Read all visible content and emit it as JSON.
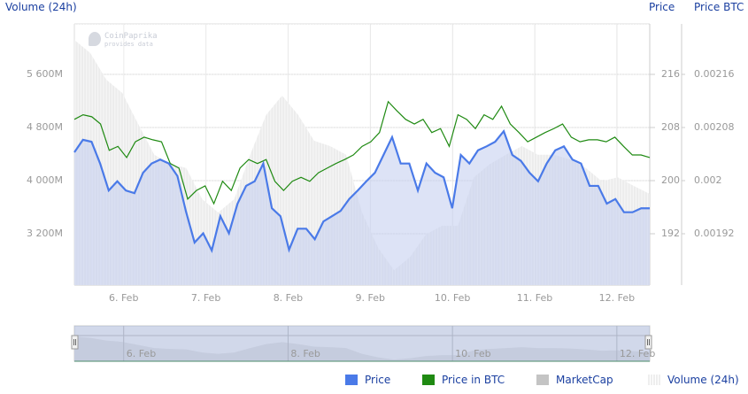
{
  "watermark": {
    "brand": "CoinPaprika",
    "sub": "provides data"
  },
  "chart_data": {
    "type": "line",
    "axes": {
      "left_title": "Volume (24h)",
      "right_title": "Price",
      "right2_title": "Price BTC",
      "left_ticks": [
        "5 600M",
        "4 800M",
        "4 000M",
        "3 200M"
      ],
      "left_tick_values": [
        5600,
        4800,
        4000,
        3200
      ],
      "price_ticks": [
        "216",
        "208",
        "200",
        "192"
      ],
      "price_tick_values": [
        216,
        208,
        200,
        192
      ],
      "btc_ticks": [
        "0.00216",
        "0.00208",
        "0.002",
        "0.00192"
      ]
    },
    "x_labels": [
      "6. Feb",
      "7. Feb",
      "8. Feb",
      "9. Feb",
      "10. Feb",
      "11. Feb",
      "12. Feb"
    ],
    "x_range_days": [
      5.4,
      12.4
    ],
    "series": [
      {
        "name": "Price",
        "color": "#4a7ae8",
        "values": [
          204.3,
          206.2,
          205.9,
          202.6,
          198.5,
          199.9,
          198.5,
          198.1,
          201.2,
          202.6,
          203.2,
          202.6,
          200.7,
          195.3,
          190.6,
          192.0,
          189.4,
          194.6,
          192.0,
          196.5,
          199.2,
          199.9,
          202.6,
          195.8,
          194.6,
          189.5,
          192.7,
          192.7,
          191.1,
          193.8,
          194.6,
          195.4,
          197.2,
          198.5,
          199.9,
          201.2,
          203.9,
          206.6,
          202.6,
          202.6,
          198.5,
          202.6,
          201.2,
          200.5,
          195.8,
          203.9,
          202.6,
          204.6,
          205.2,
          205.9,
          207.5,
          203.9,
          203.0,
          201.2,
          199.9,
          202.6,
          204.6,
          205.2,
          203.2,
          202.6,
          199.2,
          199.2,
          196.5,
          197.2,
          195.2,
          195.2,
          195.8,
          195.8
        ]
      },
      {
        "name": "Price in BTC",
        "color": "#1f8a12",
        "values": [
          0.002093,
          0.0021,
          0.002097,
          0.002086,
          0.002046,
          0.002052,
          0.002035,
          0.002059,
          0.002066,
          0.002062,
          0.002059,
          0.002026,
          0.002019,
          0.001972,
          0.001985,
          0.001992,
          0.001965,
          0.001999,
          0.001985,
          0.002019,
          0.002032,
          0.002026,
          0.002032,
          0.001999,
          0.001985,
          0.001999,
          0.002005,
          0.001999,
          0.002012,
          0.002019,
          0.002026,
          0.002032,
          0.002039,
          0.002052,
          0.002059,
          0.002073,
          0.00212,
          0.002106,
          0.002093,
          0.002086,
          0.002093,
          0.002073,
          0.002079,
          0.002052,
          0.0021,
          0.002093,
          0.002079,
          0.0021,
          0.002093,
          0.002113,
          0.002086,
          0.002073,
          0.002059,
          0.002066,
          0.002073,
          0.002079,
          0.002086,
          0.002066,
          0.002059,
          0.002062,
          0.002062,
          0.002059,
          0.002066,
          0.002052,
          0.002039,
          0.002039,
          0.002035
        ]
      },
      {
        "name": "MarketCap",
        "color": "#c4c4c4"
      },
      {
        "name": "Volume (24h)",
        "color": "#e6e6e6",
        "values": [
          6120,
          5920,
          5520,
          5320,
          4850,
          4390,
          4250,
          4190,
          3720,
          3520,
          3720,
          4390,
          4990,
          5280,
          4990,
          4600,
          4520,
          4390,
          3520,
          2990,
          2650,
          2850,
          3190,
          3320,
          3320,
          4050,
          4250,
          4390,
          4520,
          4390,
          4390,
          4320,
          4190,
          3990,
          4050,
          3920,
          3800
        ]
      }
    ],
    "navigator_labels": [
      "6. Feb",
      "8. Feb",
      "10. Feb",
      "12. Feb"
    ],
    "navigator_label_days": [
      6,
      8,
      10,
      12
    ]
  },
  "legend": [
    "Price",
    "Price in BTC",
    "MarketCap",
    "Volume (24h)"
  ]
}
